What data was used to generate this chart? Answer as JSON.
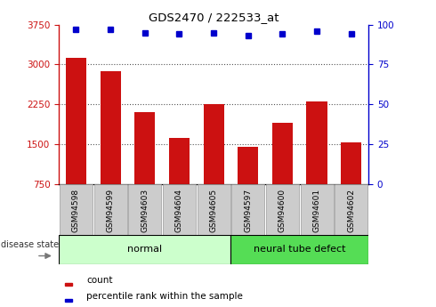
{
  "title": "GDS2470 / 222533_at",
  "categories": [
    "GSM94598",
    "GSM94599",
    "GSM94603",
    "GSM94604",
    "GSM94605",
    "GSM94597",
    "GSM94600",
    "GSM94601",
    "GSM94602"
  ],
  "counts": [
    3130,
    2870,
    2100,
    1620,
    2260,
    1450,
    1900,
    2310,
    1530
  ],
  "percentiles": [
    97,
    97,
    95,
    94,
    95,
    93,
    94,
    96,
    94
  ],
  "ylim_left": [
    750,
    3750
  ],
  "ylim_right": [
    0,
    100
  ],
  "yticks_left": [
    750,
    1500,
    2250,
    3000,
    3750
  ],
  "yticks_right": [
    0,
    25,
    50,
    75,
    100
  ],
  "bar_color": "#cc1111",
  "dot_color": "#0000cc",
  "group_normal_indices": [
    0,
    1,
    2,
    3,
    4
  ],
  "group_defect_indices": [
    5,
    6,
    7,
    8
  ],
  "group_normal_label": "normal",
  "group_defect_label": "neural tube defect",
  "group_normal_color": "#ccffcc",
  "group_defect_color": "#55dd55",
  "disease_state_label": "disease state",
  "legend_count_label": "count",
  "legend_pct_label": "percentile rank within the sample",
  "tick_bg_color": "#cccccc",
  "dotted_grid_color": "#555555",
  "grid_yticks": [
    1500,
    2250,
    3000
  ]
}
